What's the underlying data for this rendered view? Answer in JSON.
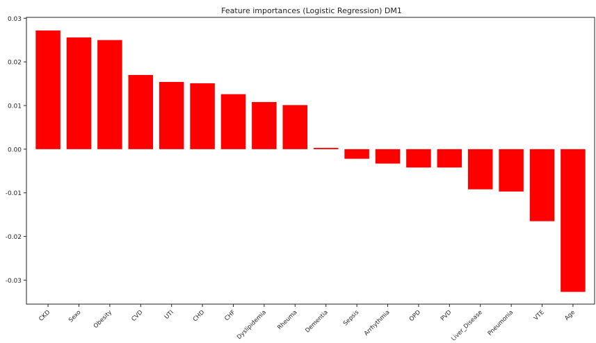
{
  "chart_data": {
    "type": "bar",
    "title": "Feature importances (Logistic Regression) DM1",
    "xlabel": "",
    "ylabel": "",
    "categories": [
      "CKD",
      "Sexo",
      "Obesity",
      "CVD",
      "UTI",
      "CHD",
      "CHF",
      "Dyslipidemia",
      "Rheuma",
      "Dementia",
      "Sepsis",
      "Arrhythmia",
      "OPD",
      "PVD",
      "Liver_Disease",
      "Pneumonia",
      "VTE",
      "Age"
    ],
    "values": [
      0.0272,
      0.0256,
      0.025,
      0.017,
      0.0154,
      0.0151,
      0.0126,
      0.0108,
      0.0101,
      0.0003,
      -0.0022,
      -0.0033,
      -0.0042,
      -0.0042,
      -0.0092,
      -0.0097,
      -0.0165,
      -0.0327
    ],
    "ylim": [
      -0.0355,
      0.0302
    ],
    "yticks": [
      -0.03,
      -0.02,
      -0.01,
      0.0,
      0.01,
      0.02,
      0.03
    ],
    "ytick_labels": [
      "-0.03",
      "-0.02",
      "-0.01",
      "0.00",
      "0.01",
      "0.02",
      "0.03"
    ],
    "bar_color": "#ff0000",
    "grid": false,
    "legend": "none"
  }
}
